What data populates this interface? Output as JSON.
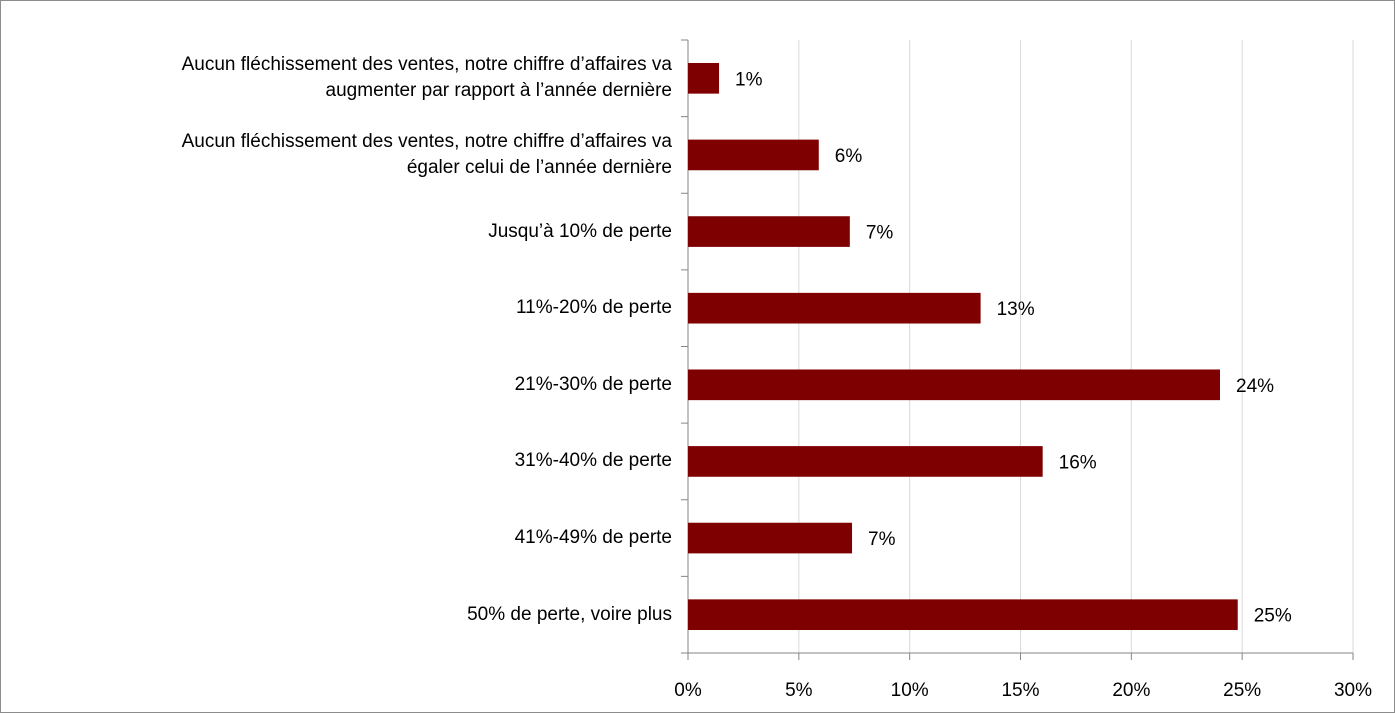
{
  "chart_data": {
    "type": "bar",
    "orientation": "horizontal",
    "categories": [
      "Aucun fléchissement des ventes, notre chiffre d’affaires va\naugmenter par rapport à l’année dernière",
      "Aucun fléchissement des ventes, notre chiffre d’affaires va\négaler celui de l’année dernière",
      "Jusqu’à 10% de perte",
      "11%-20% de perte",
      "21%-30% de perte",
      "31%-40% de perte",
      "41%-49% de perte",
      "50% de perte, voire plus"
    ],
    "values": [
      1.4,
      5.9,
      7.3,
      13.2,
      24,
      16,
      7.4,
      24.8
    ],
    "value_labels": [
      "1%",
      "6%",
      "7%",
      "13%",
      "24%",
      "16%",
      "7%",
      "25%"
    ],
    "color": "#7f0000",
    "xlim": [
      0,
      30
    ],
    "xticks": [
      {
        "value": 0,
        "label": "0%"
      },
      {
        "value": 5,
        "label": "5%"
      },
      {
        "value": 10,
        "label": "10%"
      },
      {
        "value": 15,
        "label": "15%"
      },
      {
        "value": 20,
        "label": "20%"
      },
      {
        "value": 25,
        "label": "25%"
      },
      {
        "value": 30,
        "label": "30%"
      }
    ],
    "grid": true
  }
}
